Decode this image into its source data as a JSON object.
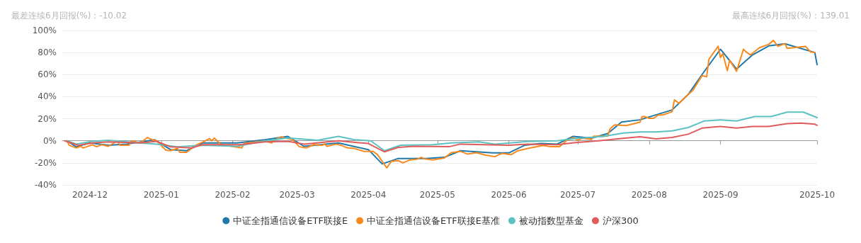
{
  "chart_data": {
    "type": "line",
    "annotations": [
      "最差连续6月回报(%)：-10.02",
      "最高连续6月回报(%)：139.01"
    ],
    "xlim": [
      "2024-11-19",
      "2025-10-13"
    ],
    "xticks": [
      {
        "value": "2024-12-01",
        "label": "2024-12"
      },
      {
        "value": "2025-01-01",
        "label": "2025-01"
      },
      {
        "value": "2025-02-01",
        "label": "2025-02"
      },
      {
        "value": "2025-03-01",
        "label": "2025-03"
      },
      {
        "value": "2025-04-01",
        "label": "2025-04"
      },
      {
        "value": "2025-05-01",
        "label": "2025-05"
      },
      {
        "value": "2025-06-01",
        "label": "2025-06"
      },
      {
        "value": "2025-07-01",
        "label": "2025-07"
      },
      {
        "value": "2025-08-01",
        "label": "2025-08"
      },
      {
        "value": "2025-09-01",
        "label": "2025-09"
      },
      {
        "value": "2025-10-13",
        "label": "2025-10"
      }
    ],
    "ylim": [
      -40,
      100
    ],
    "yticks": [
      {
        "value": -40,
        "label": "-40%"
      },
      {
        "value": -20,
        "label": "-20%"
      },
      {
        "value": 0,
        "label": "0%"
      },
      {
        "value": 20,
        "label": "20%"
      },
      {
        "value": 40,
        "label": "40%"
      },
      {
        "value": 60,
        "label": "60%"
      },
      {
        "value": 80,
        "label": "80%"
      },
      {
        "value": 100,
        "label": "100%"
      }
    ],
    "grid": "y",
    "legend": "bottom",
    "marker": "none",
    "line_style": "solid",
    "series": [
      {
        "name": "中证全指通信设备ETF联接E",
        "color": "#1f78a6",
        "x": [
          "2024-11-21",
          "2024-11-25",
          "2024-12-01",
          "2024-12-09",
          "2024-12-17",
          "2024-12-29",
          "2025-01-05",
          "2025-01-12",
          "2025-01-19",
          "2025-02-03",
          "2025-02-15",
          "2025-02-25",
          "2025-03-04",
          "2025-03-19",
          "2025-04-01",
          "2025-04-07",
          "2025-04-14",
          "2025-04-26",
          "2025-05-04",
          "2025-05-11",
          "2025-05-25",
          "2025-06-01",
          "2025-06-08",
          "2025-06-15",
          "2025-06-22",
          "2025-06-29",
          "2025-07-07",
          "2025-07-14",
          "2025-07-20",
          "2025-07-28",
          "2025-08-11",
          "2025-08-18",
          "2025-08-24",
          "2025-09-01",
          "2025-09-08",
          "2025-09-15",
          "2025-09-22",
          "2025-09-29",
          "2025-10-12",
          "2025-10-13"
        ],
        "values": [
          0,
          -5.4,
          -2,
          -4,
          -3,
          1,
          -8,
          -9,
          -2,
          -2,
          1,
          4,
          -5,
          -2,
          -8,
          -21,
          -16,
          -16,
          -15,
          -9,
          -11,
          -11,
          -4,
          -2.4,
          -3,
          4,
          2.4,
          6.6,
          17,
          19,
          28,
          42,
          60,
          83,
          65,
          78,
          86,
          88,
          80,
          69
        ]
      },
      {
        "name": "中证全指通信设备ETF联接E基准",
        "color": "#f7891e",
        "x": [
          "2024-11-21",
          "2024-11-22",
          "2024-11-25",
          "2024-11-27",
          "2024-11-28",
          "2024-12-02",
          "2024-12-04",
          "2024-12-06",
          "2024-12-09",
          "2024-12-13",
          "2024-12-14",
          "2024-12-18",
          "2024-12-19",
          "2024-12-23",
          "2024-12-26",
          "2024-12-28",
          "2024-12-30",
          "2025-01-03",
          "2025-01-05",
          "2025-01-08",
          "2025-01-09",
          "2025-01-12",
          "2025-01-16",
          "2025-01-19",
          "2025-01-22",
          "2025-01-23",
          "2025-01-24",
          "2025-01-27",
          "2025-02-05",
          "2025-02-06",
          "2025-02-15",
          "2025-02-18",
          "2025-02-19",
          "2025-02-22",
          "2025-02-24",
          "2025-02-27",
          "2025-03-02",
          "2025-03-05",
          "2025-03-08",
          "2025-03-12",
          "2025-03-13",
          "2025-03-14",
          "2025-03-18",
          "2025-03-20",
          "2025-03-23",
          "2025-03-26",
          "2025-03-30",
          "2025-04-03",
          "2025-04-05",
          "2025-04-09",
          "2025-04-11",
          "2025-04-14",
          "2025-04-16",
          "2025-04-19",
          "2025-04-22",
          "2025-04-24",
          "2025-04-25",
          "2025-04-29",
          "2025-05-04",
          "2025-05-07",
          "2025-05-11",
          "2025-05-14",
          "2025-05-18",
          "2025-05-22",
          "2025-05-26",
          "2025-05-29",
          "2025-06-02",
          "2025-06-05",
          "2025-06-10",
          "2025-06-16",
          "2025-06-19",
          "2025-06-23",
          "2025-06-26",
          "2025-06-29",
          "2025-07-01",
          "2025-07-03",
          "2025-07-07",
          "2025-07-08",
          "2025-07-14",
          "2025-07-15",
          "2025-07-17",
          "2025-07-22",
          "2025-07-28",
          "2025-07-29",
          "2025-07-30",
          "2025-08-01",
          "2025-08-03",
          "2025-08-05",
          "2025-08-07",
          "2025-08-11",
          "2025-08-12",
          "2025-08-14",
          "2025-08-18",
          "2025-08-20",
          "2025-08-24",
          "2025-08-26",
          "2025-08-27",
          "2025-08-31",
          "2025-09-01",
          "2025-09-02",
          "2025-09-04",
          "2025-09-05",
          "2025-09-08",
          "2025-09-11",
          "2025-09-12",
          "2025-09-14",
          "2025-09-18",
          "2025-09-22",
          "2025-09-24",
          "2025-09-26",
          "2025-09-29",
          "2025-09-30",
          "2025-10-08",
          "2025-10-10",
          "2025-10-12"
        ],
        "values": [
          0,
          -4,
          -6.5,
          -5,
          -6.5,
          -3.6,
          -5.4,
          -3.6,
          -5,
          0,
          -4,
          -4,
          0,
          -2,
          3,
          1,
          0,
          -8.5,
          -9,
          -7,
          -10.5,
          -10.5,
          -4,
          -1.2,
          2,
          0,
          2.5,
          -3.6,
          -6.5,
          -2.4,
          0,
          -2,
          0.6,
          3.6,
          2.4,
          1.2,
          -5.4,
          -6.5,
          -3.6,
          -4,
          -3,
          -5,
          -3,
          -4,
          -6.5,
          -7,
          -9.6,
          -9.6,
          -12.6,
          -24.6,
          -18.6,
          -18,
          -20,
          -17.4,
          -16.8,
          -15,
          -16.2,
          -17.4,
          -15.6,
          -10.8,
          -9.6,
          -12,
          -10.8,
          -13,
          -14.4,
          -11.4,
          -12.6,
          -9,
          -6.6,
          -4.2,
          -5.4,
          -5.4,
          0,
          3,
          0.6,
          2.4,
          1.2,
          4.2,
          4.2,
          10.8,
          14.4,
          13.8,
          16.8,
          22,
          22,
          20.4,
          20.4,
          23.4,
          23.4,
          26.4,
          37,
          34,
          42,
          45.6,
          59,
          58,
          74,
          85.6,
          75.4,
          79,
          63.5,
          73,
          63,
          83,
          80.8,
          77.8,
          84.4,
          87.4,
          91,
          85.6,
          88,
          83.8,
          85.6,
          80.8,
          80
        ]
      },
      {
        "name": "被动指数型基金",
        "color": "#5dc1c3",
        "x": [
          "2024-11-21",
          "2024-11-25",
          "2024-12-02",
          "2024-12-09",
          "2024-12-23",
          "2024-12-30",
          "2025-01-08",
          "2025-01-19",
          "2025-02-03",
          "2025-02-15",
          "2025-02-25",
          "2025-03-10",
          "2025-03-19",
          "2025-03-26",
          "2025-04-02",
          "2025-04-08",
          "2025-04-15",
          "2025-04-29",
          "2025-05-07",
          "2025-05-19",
          "2025-05-26",
          "2025-06-09",
          "2025-06-22",
          "2025-06-30",
          "2025-07-12",
          "2025-07-21",
          "2025-07-28",
          "2025-08-04",
          "2025-08-11",
          "2025-08-18",
          "2025-08-25",
          "2025-09-01",
          "2025-09-08",
          "2025-09-16",
          "2025-09-23",
          "2025-09-30",
          "2025-10-07",
          "2025-10-13"
        ],
        "values": [
          0,
          -3,
          -0.5,
          0.5,
          -2,
          -3,
          -5.5,
          -4,
          -5,
          0,
          2.5,
          0.5,
          4,
          1,
          0,
          -9,
          -4,
          -3.6,
          -2,
          -1,
          -3,
          -0.6,
          0,
          2,
          4,
          7,
          8,
          8,
          9,
          12,
          18,
          19,
          18,
          22,
          22,
          26,
          26,
          21
        ]
      },
      {
        "name": "沪深300",
        "color": "#e05b5c",
        "x": [
          "2024-11-20",
          "2024-11-26",
          "2024-12-02",
          "2024-12-09",
          "2024-12-23",
          "2024-12-30",
          "2025-01-05",
          "2025-01-14",
          "2025-01-19",
          "2025-02-04",
          "2025-02-15",
          "2025-02-25",
          "2025-03-04",
          "2025-03-19",
          "2025-04-01",
          "2025-04-08",
          "2025-04-14",
          "2025-04-21",
          "2025-05-06",
          "2025-05-11",
          "2025-06-01",
          "2025-06-09",
          "2025-06-22",
          "2025-06-30",
          "2025-07-10",
          "2025-07-20",
          "2025-07-28",
          "2025-08-04",
          "2025-08-11",
          "2025-08-18",
          "2025-08-24",
          "2025-09-01",
          "2025-09-08",
          "2025-09-15",
          "2025-09-22",
          "2025-09-30",
          "2025-10-06",
          "2025-10-12",
          "2025-10-13"
        ],
        "values": [
          0,
          -4,
          -2,
          -1,
          -2,
          -0.5,
          -5.5,
          -6.5,
          -3.6,
          -3.6,
          -1,
          -0.5,
          -3,
          0,
          -2.5,
          -10,
          -6,
          -5,
          -5.4,
          -3,
          -4,
          -3,
          -3.6,
          -1.6,
          0,
          2,
          3.6,
          1.8,
          3,
          6,
          11.5,
          13,
          11.5,
          13,
          13,
          15.6,
          16,
          15,
          14
        ]
      }
    ]
  }
}
